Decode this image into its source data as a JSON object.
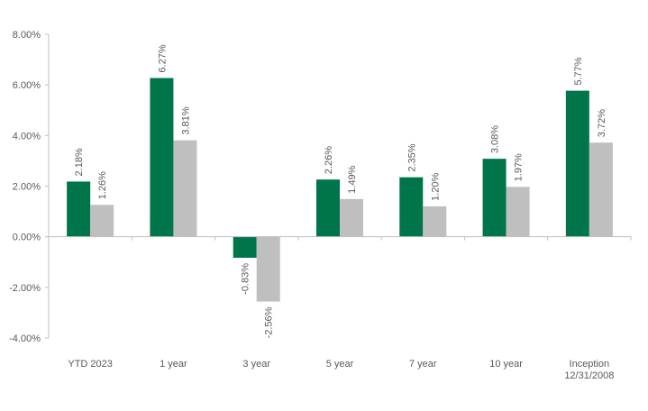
{
  "chart_data": {
    "type": "bar",
    "title": "",
    "xlabel": "",
    "ylabel": "",
    "categories": [
      [
        "YTD 2023"
      ],
      [
        "1 year"
      ],
      [
        "3 year"
      ],
      [
        "5 year"
      ],
      [
        "7 year"
      ],
      [
        "10 year"
      ],
      [
        "Inception",
        "12/31/2008"
      ]
    ],
    "series": [
      {
        "color": "#00754a",
        "values": [
          2.18,
          6.27,
          -0.83,
          2.26,
          2.35,
          3.08,
          5.77
        ],
        "labels": [
          "2.18%",
          "6.27%",
          "-0.83%",
          "2.26%",
          "2.35%",
          "3.08%",
          "5.77%"
        ]
      },
      {
        "color": "#bfbfbf",
        "values": [
          1.26,
          3.81,
          -2.56,
          1.49,
          1.2,
          1.97,
          3.72
        ],
        "labels": [
          "1.26%",
          "3.81%",
          "-2.56%",
          "1.49%",
          "1.20%",
          "1.97%",
          "3.72%"
        ]
      }
    ],
    "ylim": [
      -4,
      8
    ],
    "yticks": [
      -4,
      -2,
      0,
      2,
      4,
      6,
      8
    ],
    "ytick_labels": [
      "-4.00%",
      "-2.00%",
      "0.00%",
      "2.00%",
      "4.00%",
      "6.00%",
      "8.00%"
    ],
    "grid": false,
    "legend": "none"
  }
}
